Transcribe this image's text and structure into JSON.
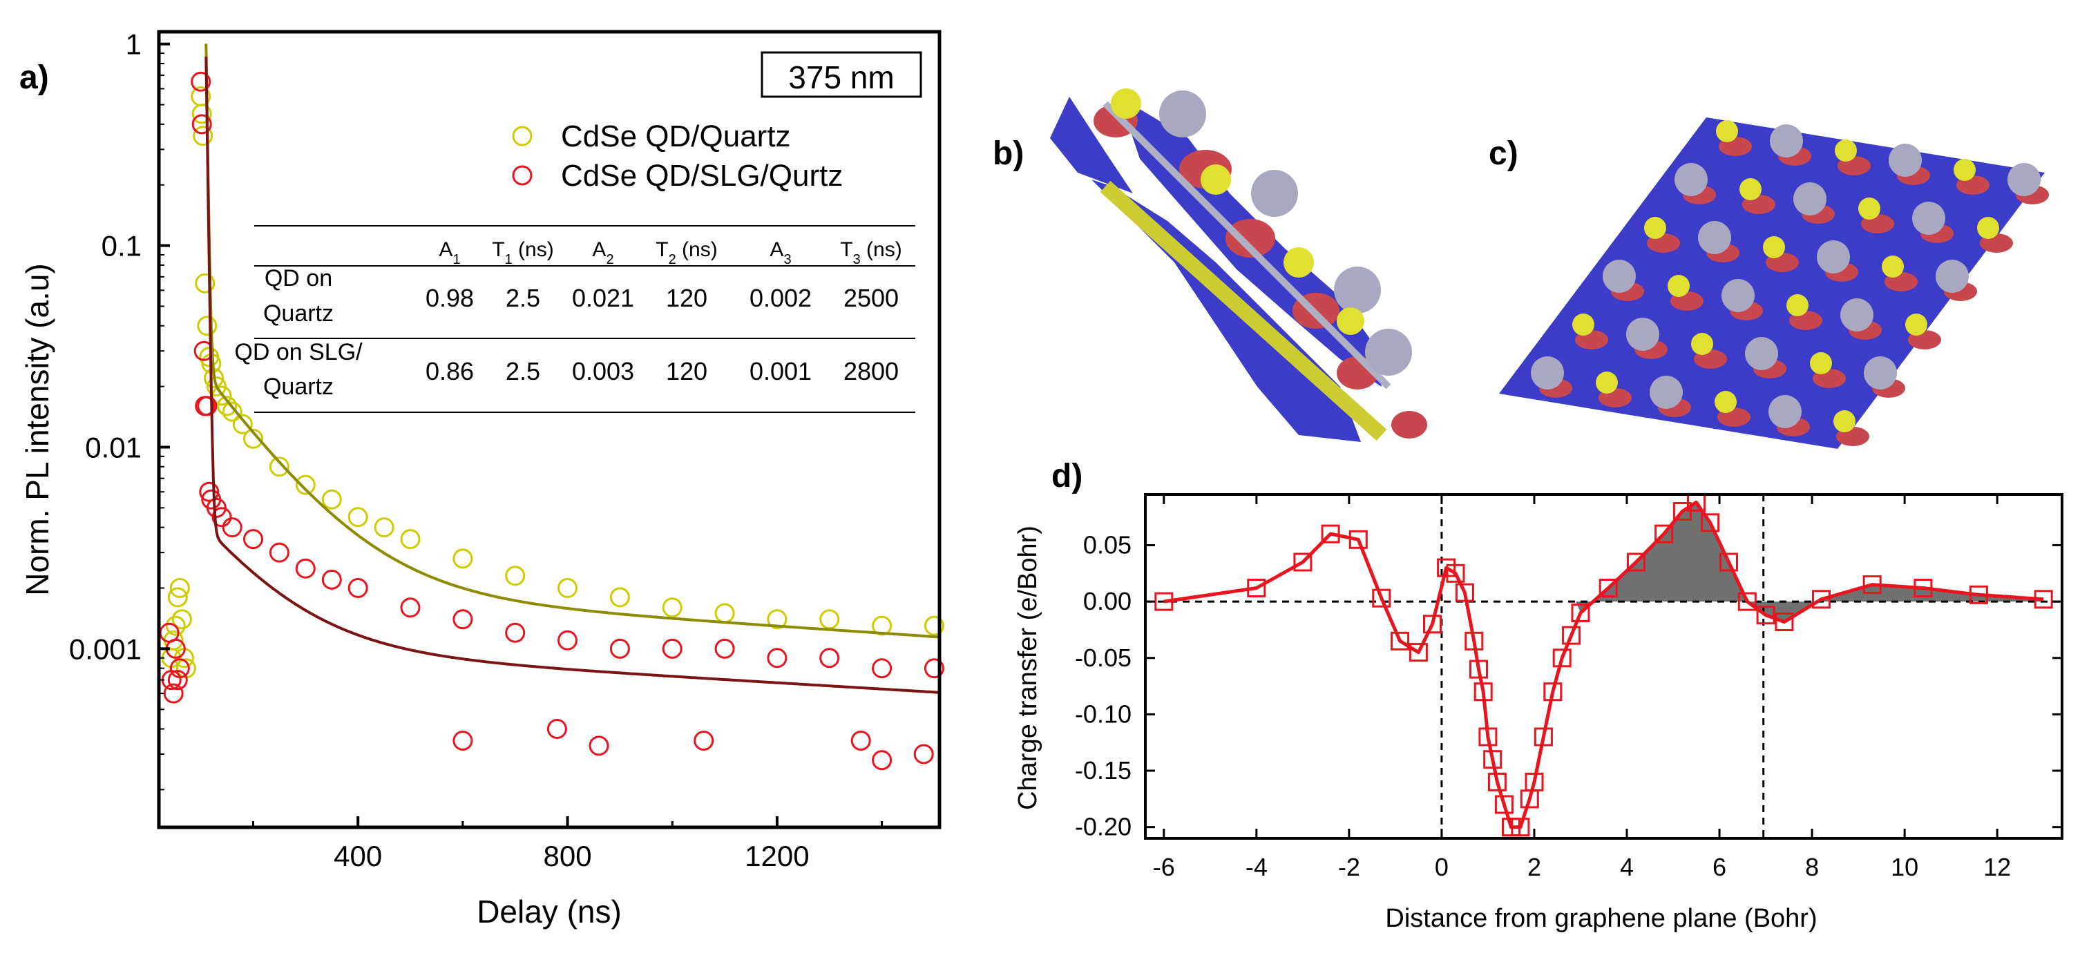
{
  "panels": {
    "a": {
      "label": "a)",
      "inset_label": "375 nm",
      "xlabel": "Delay (ns)",
      "ylabel": "Norm.  PL intensity (a.u)",
      "legend": [
        {
          "name": "CdSe QD/Quartz",
          "color": "#cccc00"
        },
        {
          "name": "CdSe QD/SLG/Qurtz",
          "color": "#e8141e"
        }
      ],
      "table": {
        "headers": [
          {
            "base": "A",
            "sub": "1",
            "suffix": ""
          },
          {
            "base": "T",
            "sub": "1",
            "suffix": " (ns)"
          },
          {
            "base": "A",
            "sub": "2",
            "suffix": ""
          },
          {
            "base": "T",
            "sub": "2",
            "suffix": " (ns)"
          },
          {
            "base": "A",
            "sub": "3",
            "suffix": ""
          },
          {
            "base": "T",
            "sub": "3",
            "suffix": " (ns)"
          }
        ],
        "rows": [
          {
            "label": [
              "QD on",
              "Quartz"
            ],
            "values": [
              "0.98",
              "2.5",
              "0.021",
              "120",
              "0.002",
              "2500"
            ]
          },
          {
            "label": [
              "QD on SLG/",
              "Quartz"
            ],
            "values": [
              "0.86",
              "2.5",
              "0.003",
              "120",
              "0.001",
              "2800"
            ]
          }
        ]
      }
    },
    "b": {
      "label": "b)"
    },
    "c": {
      "label": "c)"
    },
    "d": {
      "label": "d)",
      "xlabel": "Distance from graphene plane (Bohr)",
      "ylabel": "Charge transfer (e/Bohr)"
    }
  },
  "chart_data": [
    {
      "type": "scatter",
      "panel": "a",
      "title": "",
      "xlabel": "Delay (ns)",
      "ylabel": "Norm.  PL intensity (a.u)",
      "xlim": [
        20,
        1510
      ],
      "ylim": [
        0.00013,
        1.15
      ],
      "yscale": "log",
      "xticks": [
        400,
        800,
        1200
      ],
      "yticks": [
        0.001,
        0.01,
        0.1,
        1
      ],
      "ytick_labels": [
        "0.001",
        "0.01",
        "0.1",
        "1"
      ],
      "grid": false,
      "legend_position": "top-right",
      "series": [
        {
          "name": "CdSe QD/Quartz",
          "color": "#cccc00",
          "fit_color": "#8c8c00",
          "fit": {
            "t0": 110,
            "components": [
              [
                0.98,
                2.5
              ],
              [
                0.021,
                120
              ],
              [
                0.002,
                2500
              ]
            ]
          },
          "points": [
            [
              44,
              0.0009
            ],
            [
              48,
              0.0011
            ],
            [
              52,
              0.0013
            ],
            [
              56,
              0.0018
            ],
            [
              60,
              0.002
            ],
            [
              64,
              0.0014
            ],
            [
              68,
              0.0009
            ],
            [
              72,
              0.0008
            ],
            [
              100,
              0.55
            ],
            [
              102,
              0.45
            ],
            [
              104,
              0.35
            ],
            [
              108,
              0.065
            ],
            [
              112,
              0.04
            ],
            [
              116,
              0.028
            ],
            [
              120,
              0.026
            ],
            [
              125,
              0.022
            ],
            [
              130,
              0.02
            ],
            [
              140,
              0.018
            ],
            [
              150,
              0.016
            ],
            [
              160,
              0.015
            ],
            [
              180,
              0.013
            ],
            [
              200,
              0.011
            ],
            [
              250,
              0.008
            ],
            [
              300,
              0.0065
            ],
            [
              350,
              0.0055
            ],
            [
              400,
              0.0045
            ],
            [
              450,
              0.004
            ],
            [
              500,
              0.0035
            ],
            [
              600,
              0.0028
            ],
            [
              700,
              0.0023
            ],
            [
              800,
              0.002
            ],
            [
              900,
              0.0018
            ],
            [
              1000,
              0.0016
            ],
            [
              1100,
              0.0015
            ],
            [
              1200,
              0.0014
            ],
            [
              1300,
              0.0014
            ],
            [
              1400,
              0.0013
            ],
            [
              1500,
              0.0013
            ]
          ]
        },
        {
          "name": "CdSe QD/SLG/Qurtz",
          "color": "#e8141e",
          "fit_color": "#7a1414",
          "fit": {
            "t0": 110,
            "components": [
              [
                0.86,
                2.5
              ],
              [
                0.003,
                120
              ],
              [
                0.001,
                2800
              ]
            ]
          },
          "points": [
            [
              40,
              0.0012
            ],
            [
              44,
              0.0007
            ],
            [
              48,
              0.0006
            ],
            [
              52,
              0.001
            ],
            [
              56,
              0.0007
            ],
            [
              60,
              0.0008
            ],
            [
              100,
              0.65
            ],
            [
              102,
              0.4
            ],
            [
              106,
              0.03
            ],
            [
              108,
              0.016
            ],
            [
              112,
              0.016
            ],
            [
              116,
              0.006
            ],
            [
              120,
              0.0055
            ],
            [
              130,
              0.005
            ],
            [
              140,
              0.0045
            ],
            [
              160,
              0.004
            ],
            [
              200,
              0.0035
            ],
            [
              250,
              0.003
            ],
            [
              300,
              0.0025
            ],
            [
              350,
              0.0022
            ],
            [
              400,
              0.002
            ],
            [
              500,
              0.0016
            ],
            [
              600,
              0.0014
            ],
            [
              700,
              0.0012
            ],
            [
              800,
              0.0011
            ],
            [
              900,
              0.001
            ],
            [
              1000,
              0.001
            ],
            [
              1100,
              0.001
            ],
            [
              1200,
              0.0009
            ],
            [
              1300,
              0.0009
            ],
            [
              1400,
              0.0008
            ],
            [
              1500,
              0.0008
            ],
            [
              600,
              0.00035
            ],
            [
              780,
              0.0004
            ],
            [
              1060,
              0.00035
            ],
            [
              1360,
              0.00035
            ],
            [
              1480,
              0.0003
            ],
            [
              860,
              0.00033
            ],
            [
              1400,
              0.00028
            ]
          ]
        }
      ]
    },
    {
      "type": "line",
      "panel": "d",
      "title": "",
      "xlabel": "Distance from graphene plane (Bohr)",
      "ylabel": "Charge transfer (e/Bohr)",
      "xlim": [
        -6.4,
        13.4
      ],
      "ylim": [
        -0.21,
        0.095
      ],
      "xticks": [
        -6,
        -4,
        -2,
        0,
        2,
        4,
        6,
        8,
        10,
        12
      ],
      "yticks": [
        0.05,
        0.0,
        -0.05,
        -0.1,
        -0.15,
        -0.2
      ],
      "ytick_labels": [
        "0.05",
        "0.00",
        "-0.05",
        "-0.10",
        "-0.15",
        "-0.20"
      ],
      "grid": false,
      "vlines": [
        0,
        6.95
      ],
      "shaded_x_range": [
        2.9,
        13.0
      ],
      "series": [
        {
          "name": "",
          "color": "#e8141e",
          "x": [
            -6,
            -4,
            -3,
            -2.4,
            -1.8,
            -1.3,
            -0.9,
            -0.5,
            -0.2,
            0.1,
            0.3,
            0.5,
            0.7,
            0.8,
            0.9,
            1.0,
            1.1,
            1.2,
            1.35,
            1.5,
            1.7,
            1.9,
            2.0,
            2.2,
            2.4,
            2.6,
            2.8,
            3.0,
            3.6,
            4.2,
            4.8,
            5.2,
            5.5,
            5.8,
            6.2,
            6.6,
            7.0,
            7.4,
            8.2,
            9.3,
            10.4,
            11.6,
            13.0
          ],
          "y": [
            0.0,
            0.012,
            0.035,
            0.06,
            0.055,
            0.003,
            -0.035,
            -0.045,
            -0.02,
            0.03,
            0.025,
            0.008,
            -0.035,
            -0.06,
            -0.08,
            -0.12,
            -0.14,
            -0.16,
            -0.18,
            -0.2,
            -0.2,
            -0.175,
            -0.16,
            -0.12,
            -0.08,
            -0.05,
            -0.03,
            -0.01,
            0.012,
            0.035,
            0.06,
            0.08,
            0.088,
            0.07,
            0.035,
            0.0,
            -0.012,
            -0.018,
            0.002,
            0.015,
            0.012,
            0.006,
            0.002
          ]
        }
      ]
    }
  ]
}
